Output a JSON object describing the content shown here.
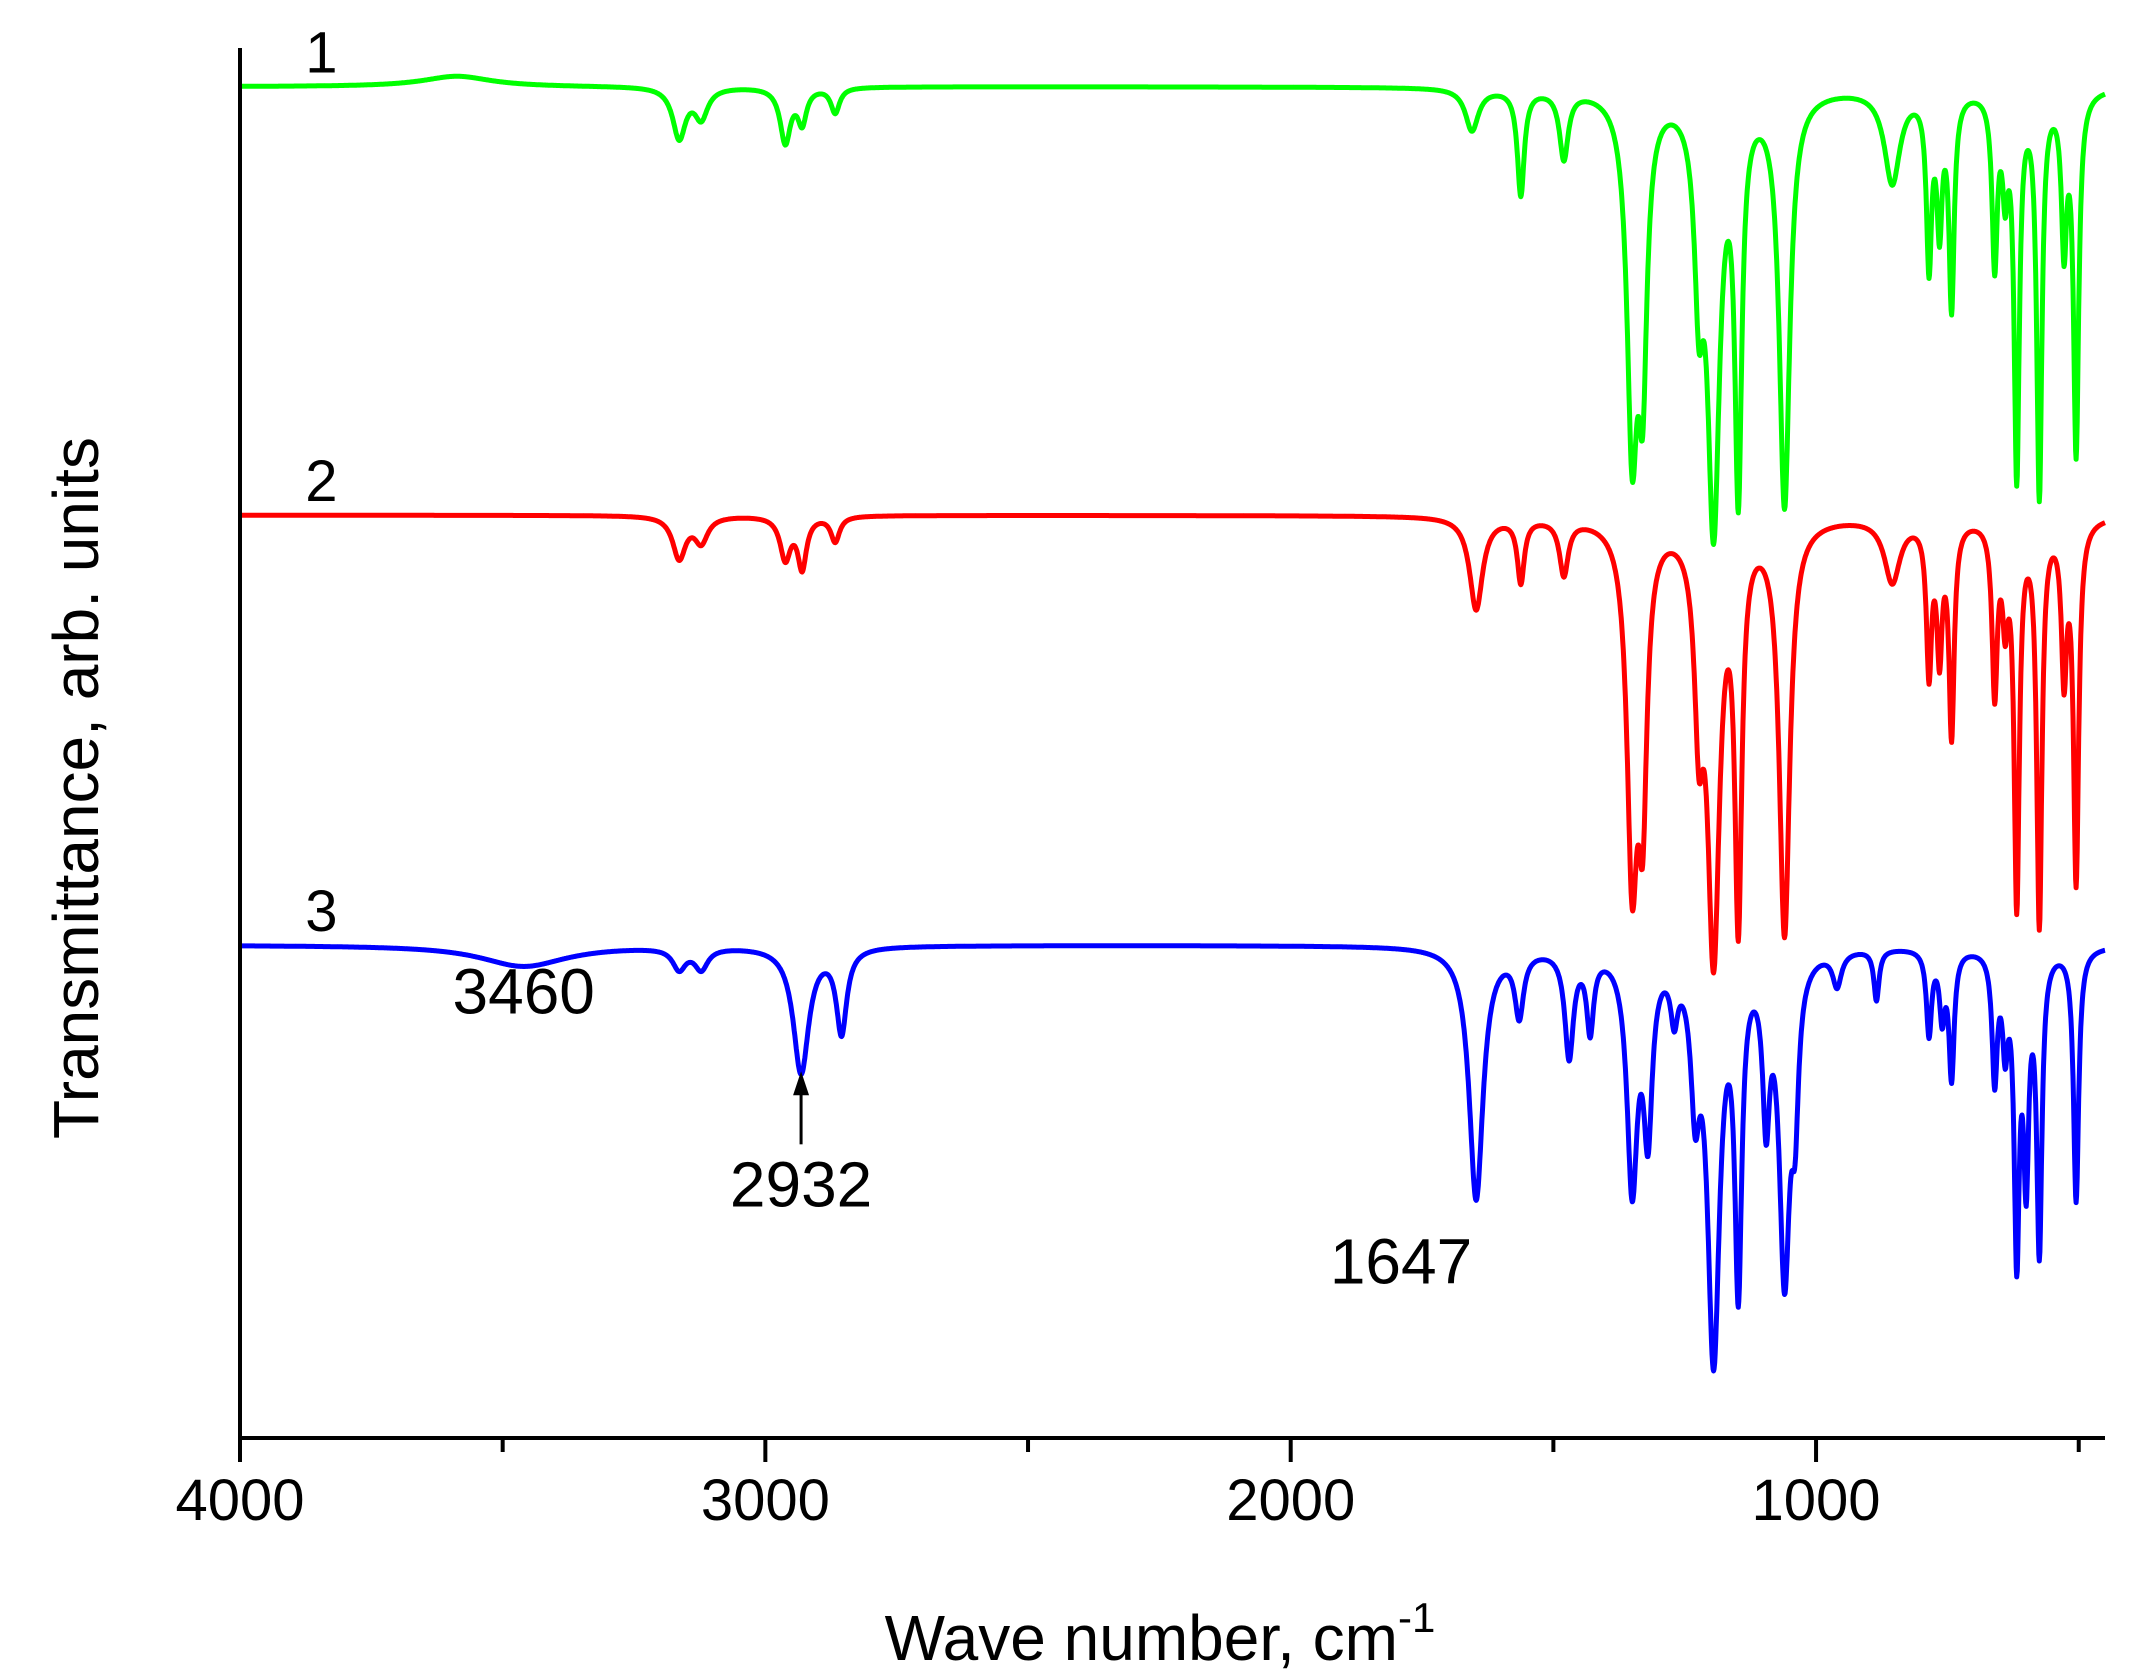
{
  "chart_data": {
    "type": "line",
    "title": "",
    "xlabel": "Wave number, cm",
    "xlabel_superscript": "-1",
    "ylabel": "Transmittance, arb. units",
    "xlim": [
      4000,
      450
    ],
    "x_reversed": true,
    "ylim": [
      -0.05,
      1.03
    ],
    "x_ticks": [
      {
        "value": 4000,
        "label": "4000"
      },
      {
        "value": 3000,
        "label": "3000"
      },
      {
        "value": 2000,
        "label": "2000"
      },
      {
        "value": 1000,
        "label": "1000"
      }
    ],
    "x_minor_ticks": [
      3500,
      2500,
      1500,
      500
    ],
    "y_tick_labels": false,
    "grid": false,
    "legend": "none",
    "series": [
      {
        "name": "1",
        "label": "1",
        "label_at": 3845,
        "color": "#00ff00",
        "offset": 1.0,
        "scale": 0.327,
        "features": [
          [
            3587,
            0.025,
            80
          ],
          [
            3164,
            -0.12,
            15
          ],
          [
            3122,
            -0.07,
            15
          ],
          [
            2962,
            -0.13,
            12
          ],
          [
            2930,
            -0.08,
            10
          ],
          [
            2867,
            -0.06,
            10
          ],
          [
            1655,
            -0.1,
            15
          ],
          [
            1562,
            -0.25,
            8
          ],
          [
            1480,
            -0.16,
            10
          ],
          [
            1350,
            -0.8,
            12
          ],
          [
            1330,
            -0.6,
            10
          ],
          [
            1223,
            -0.4,
            10
          ],
          [
            1195,
            -1.0,
            14
          ],
          [
            1148,
            -0.9,
            8
          ],
          [
            1060,
            -0.98,
            12
          ],
          [
            855,
            -0.22,
            18
          ],
          [
            785,
            -0.4,
            6
          ],
          [
            765,
            -0.3,
            6
          ],
          [
            742,
            -0.5,
            6
          ],
          [
            660,
            -0.4,
            6
          ],
          [
            640,
            -0.2,
            6
          ],
          [
            618,
            -0.9,
            6
          ],
          [
            575,
            -0.95,
            6
          ],
          [
            528,
            -0.35,
            6
          ],
          [
            505,
            -0.85,
            6
          ]
        ]
      },
      {
        "name": "2",
        "label": "2",
        "label_at": 3845,
        "color": "#ff0000",
        "offset": 0.667,
        "scale": 0.327,
        "features": [
          [
            3164,
            -0.1,
            15
          ],
          [
            3122,
            -0.06,
            15
          ],
          [
            2962,
            -0.1,
            12
          ],
          [
            2930,
            -0.12,
            10
          ],
          [
            2867,
            -0.06,
            10
          ],
          [
            1647,
            -0.22,
            15
          ],
          [
            1562,
            -0.15,
            8
          ],
          [
            1480,
            -0.13,
            10
          ],
          [
            1350,
            -0.8,
            12
          ],
          [
            1330,
            -0.6,
            10
          ],
          [
            1223,
            -0.4,
            10
          ],
          [
            1195,
            -1.0,
            14
          ],
          [
            1148,
            -0.9,
            8
          ],
          [
            1060,
            -0.98,
            12
          ],
          [
            855,
            -0.15,
            18
          ],
          [
            785,
            -0.35,
            6
          ],
          [
            765,
            -0.3,
            6
          ],
          [
            742,
            -0.5,
            6
          ],
          [
            660,
            -0.4,
            6
          ],
          [
            640,
            -0.2,
            6
          ],
          [
            618,
            -0.9,
            6
          ],
          [
            575,
            -0.95,
            6
          ],
          [
            528,
            -0.35,
            6
          ],
          [
            505,
            -0.85,
            6
          ]
        ]
      },
      {
        "name": "3",
        "label": "3",
        "label_at": 3845,
        "color": "#0000ff",
        "offset": 0.333,
        "scale": 0.327,
        "features": [
          [
            3460,
            -0.05,
            100
          ],
          [
            3164,
            -0.05,
            15
          ],
          [
            3122,
            -0.05,
            15
          ],
          [
            2932,
            -0.3,
            18
          ],
          [
            2855,
            -0.2,
            12
          ],
          [
            1647,
            -0.6,
            16
          ],
          [
            1565,
            -0.15,
            10
          ],
          [
            1470,
            -0.25,
            10
          ],
          [
            1430,
            -0.18,
            8
          ],
          [
            1350,
            -0.55,
            12
          ],
          [
            1320,
            -0.4,
            10
          ],
          [
            1270,
            -0.12,
            8
          ],
          [
            1230,
            -0.3,
            10
          ],
          [
            1195,
            -0.95,
            14
          ],
          [
            1148,
            -0.75,
            8
          ],
          [
            1095,
            -0.35,
            8
          ],
          [
            1060,
            -0.75,
            12
          ],
          [
            1040,
            -0.3,
            8
          ],
          [
            960,
            -0.08,
            10
          ],
          [
            885,
            -0.12,
            6
          ],
          [
            785,
            -0.2,
            6
          ],
          [
            760,
            -0.15,
            6
          ],
          [
            742,
            -0.3,
            6
          ],
          [
            660,
            -0.3,
            6
          ],
          [
            640,
            -0.2,
            6
          ],
          [
            618,
            -0.7,
            6
          ],
          [
            600,
            -0.5,
            6
          ],
          [
            575,
            -0.7,
            6
          ],
          [
            505,
            -0.6,
            6
          ]
        ]
      }
    ],
    "annotations": [
      {
        "text": "3460",
        "x": 3460,
        "y": 0.28
      },
      {
        "text": "2932",
        "x": 2932,
        "y": 0.13,
        "arrow_to": 0.235
      },
      {
        "text": "1647",
        "x": 1790,
        "y": 0.07
      }
    ]
  }
}
